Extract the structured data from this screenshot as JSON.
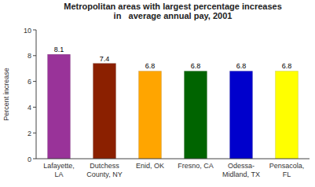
{
  "chart_data": {
    "type": "bar",
    "title": "Metropolitan areas with largest percentage increases\nin   average annual pay, 2001",
    "categories": [
      "Lafayette,\nLA",
      "Dutchess\nCounty, NY",
      "Enid, OK",
      "Fresno, CA",
      "Odessa-\nMidland, TX",
      "Pensacola,\nFL"
    ],
    "values": [
      8.1,
      7.4,
      6.8,
      6.8,
      6.8,
      6.8
    ],
    "colors": [
      "#993399",
      "#8B2000",
      "#FFA500",
      "#006400",
      "#0000CC",
      "#FFFF00"
    ],
    "y_label": "Percent increase",
    "ylim": [
      0,
      10
    ],
    "yticks": [
      0,
      2,
      4,
      6,
      8,
      10
    ],
    "grid": false,
    "data_labels": true
  }
}
